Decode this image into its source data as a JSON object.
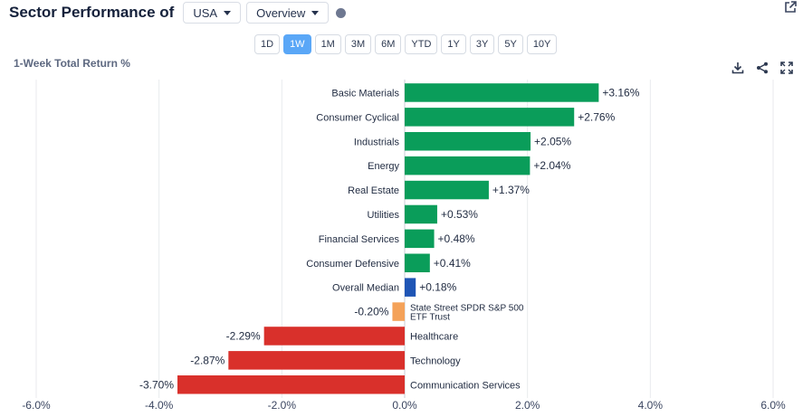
{
  "header": {
    "title": "Sector Performance of",
    "region": "USA",
    "view": "Overview"
  },
  "periods": [
    "1D",
    "1W",
    "1M",
    "3M",
    "6M",
    "YTD",
    "1Y",
    "3Y",
    "5Y",
    "10Y"
  ],
  "active_period": "1W",
  "icons": {
    "external": "external-link-icon",
    "download": "download-icon",
    "share": "share-icon",
    "fullscreen": "fullscreen-icon",
    "info": "info-dot-icon"
  },
  "colors": {
    "positive": "#0a9d5a",
    "negative": "#d9302b",
    "median": "#1f55b5",
    "benchmark": "#f4a259",
    "active_period": "#5aa7f7"
  },
  "chart_data": {
    "type": "bar",
    "orientation": "horizontal",
    "title": "1-Week Total Return %",
    "categories": [
      "Basic Materials",
      "Consumer Cyclical",
      "Industrials",
      "Energy",
      "Real Estate",
      "Utilities",
      "Financial Services",
      "Consumer Defensive",
      "Overall Median",
      "State Street SPDR S&P 500 ETF Trust",
      "Healthcare",
      "Technology",
      "Communication Services"
    ],
    "category_lines": [
      [
        "Basic Materials"
      ],
      [
        "Consumer Cyclical"
      ],
      [
        "Industrials"
      ],
      [
        "Energy"
      ],
      [
        "Real Estate"
      ],
      [
        "Utilities"
      ],
      [
        "Financial Services"
      ],
      [
        "Consumer Defensive"
      ],
      [
        "Overall Median"
      ],
      [
        "State Street SPDR S&P 500",
        "ETF Trust"
      ],
      [
        "Healthcare"
      ],
      [
        "Technology"
      ],
      [
        "Communication Services"
      ]
    ],
    "values": [
      3.16,
      2.76,
      2.05,
      2.04,
      1.37,
      0.53,
      0.48,
      0.41,
      0.18,
      -0.2,
      -2.29,
      -2.87,
      -3.7
    ],
    "value_labels": [
      "+3.16%",
      "+2.76%",
      "+2.05%",
      "+2.04%",
      "+1.37%",
      "+0.53%",
      "+0.48%",
      "+0.41%",
      "+0.18%",
      "-0.20%",
      "-2.29%",
      "-2.87%",
      "-3.70%"
    ],
    "kinds": [
      "positive",
      "positive",
      "positive",
      "positive",
      "positive",
      "positive",
      "positive",
      "positive",
      "median",
      "benchmark",
      "negative",
      "negative",
      "negative"
    ],
    "xlim": [
      -6,
      6
    ],
    "xticks": [
      -6,
      -4,
      -2,
      0,
      2,
      4,
      6
    ],
    "xtick_labels": [
      "-6.0%",
      "-4.0%",
      "-2.0%",
      "0.0%",
      "2.0%",
      "4.0%",
      "6.0%"
    ],
    "grid": true
  }
}
